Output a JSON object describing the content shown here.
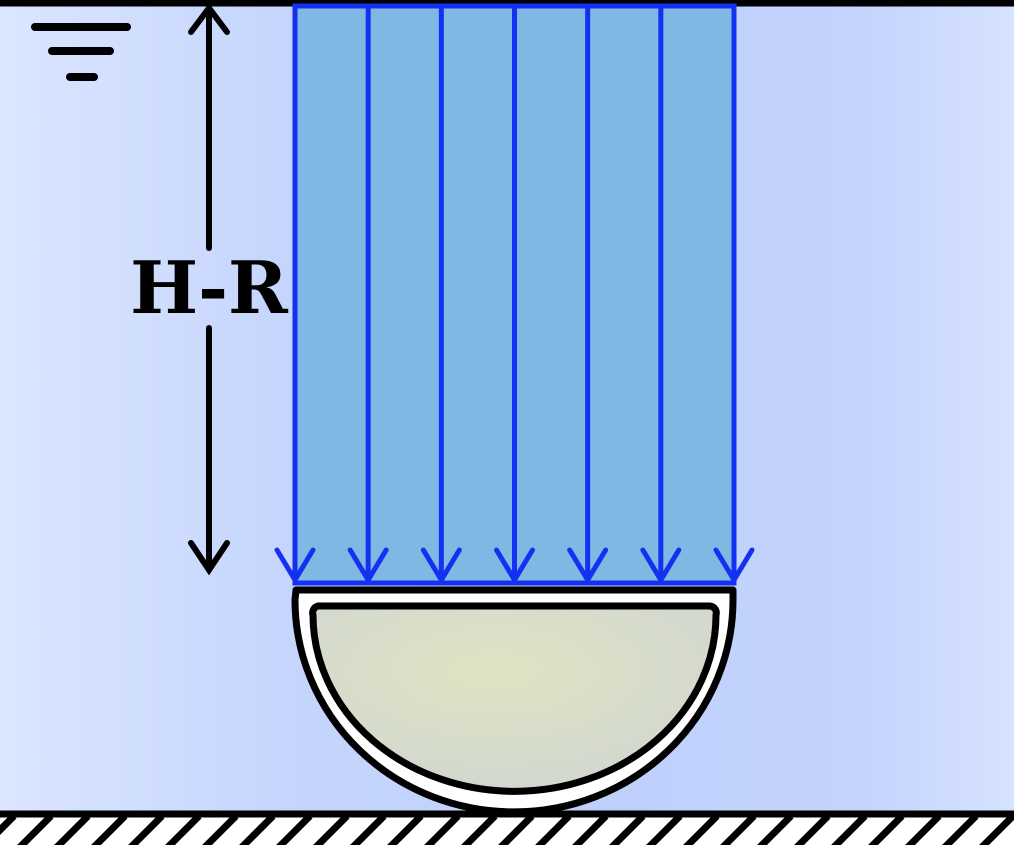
{
  "diagram": {
    "dimension_label": "H-R",
    "pressure_arrow_count": 7,
    "colors": {
      "water_edge": "#dbe6ff",
      "water_mid": "#c3d3fd",
      "pressure_fill": "#7fb9e3",
      "pressure_stroke": "#1530f0",
      "hemisphere_fill": "#d6dcc4",
      "hemisphere_highlight": "#dfe4c2",
      "shell": "#ffffff",
      "line": "#000000"
    },
    "icons": [
      "free-surface-icon",
      "dimension-arrow-icon",
      "ground-hatch-icon"
    ]
  }
}
